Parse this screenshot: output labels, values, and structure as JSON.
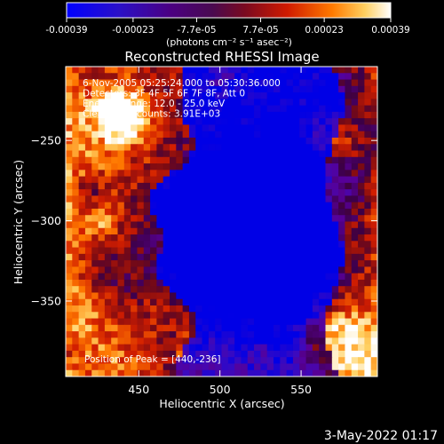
{
  "colorbar": {
    "tick_labels": [
      "-0.00039",
      "-0.00023",
      "-7.7e-05",
      "7.7e-05",
      "0.00023",
      "0.00039"
    ],
    "tick_values": [
      -0.00039,
      -0.00023,
      -7.7e-05,
      7.7e-05,
      0.00023,
      0.00039
    ],
    "range": [
      -0.00039,
      0.00039
    ],
    "unit_label": "(photons cm⁻² s⁻¹ asec⁻²)",
    "colors": [
      "#0000ff",
      "#4b0082",
      "#7a2cc0",
      "#b4002e",
      "#e83a00",
      "#ff8c00",
      "#ffffff"
    ]
  },
  "chart_data": {
    "type": "heatmap",
    "title": "Reconstructed RHESSI Image",
    "xlabel": "Heliocentric X (arcsec)",
    "ylabel": "Heliocentric Y (arcsec)",
    "xlim": [
      405,
      597
    ],
    "ylim": [
      -397,
      -204
    ],
    "x_ticks": [
      450,
      500,
      550
    ],
    "y_ticks": [
      -250,
      -300,
      -350
    ],
    "x_tick_labels": [
      "450",
      "500",
      "550"
    ],
    "y_tick_labels": [
      "−250",
      "−300",
      "−350"
    ],
    "annotations": [
      "6-Nov-2005 05:25:24.000 to 05:30:36.000",
      "Detectors: 3F 4F 5F 6F 7F 8F, Att 0",
      "Energy Range: 12.0 - 25.0 keV",
      "Clean  Total counts: 3.91E+03"
    ],
    "peak_label": "Position of Peak = [440,-236]",
    "peak_position": [
      440,
      -236
    ]
  },
  "footer": {
    "timestamp": "3-May-2022 01:17"
  }
}
